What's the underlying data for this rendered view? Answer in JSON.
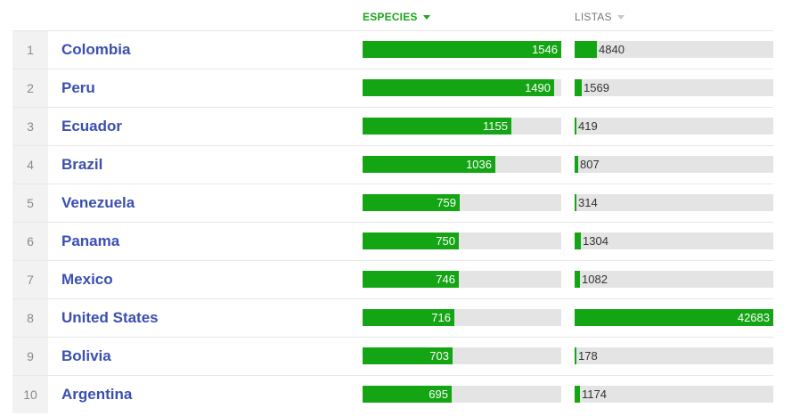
{
  "columns": {
    "species_label": "ESPECIES",
    "lists_label": "LISTAS"
  },
  "colors": {
    "bar": "#14a514",
    "track": "#e4e4e4",
    "link": "#3a4fb0"
  },
  "max": {
    "species": 1546,
    "lists": 42683
  },
  "rows": [
    {
      "rank": "1",
      "name": "Colombia",
      "species": 1546,
      "lists": 4840
    },
    {
      "rank": "2",
      "name": "Peru",
      "species": 1490,
      "lists": 1569
    },
    {
      "rank": "3",
      "name": "Ecuador",
      "species": 1155,
      "lists": 419
    },
    {
      "rank": "4",
      "name": "Brazil",
      "species": 1036,
      "lists": 807
    },
    {
      "rank": "5",
      "name": "Venezuela",
      "species": 759,
      "lists": 314
    },
    {
      "rank": "6",
      "name": "Panama",
      "species": 750,
      "lists": 1304
    },
    {
      "rank": "7",
      "name": "Mexico",
      "species": 746,
      "lists": 1082
    },
    {
      "rank": "8",
      "name": "United States",
      "species": 716,
      "lists": 42683
    },
    {
      "rank": "9",
      "name": "Bolivia",
      "species": 703,
      "lists": 178
    },
    {
      "rank": "10",
      "name": "Argentina",
      "species": 695,
      "lists": 1174
    }
  ]
}
